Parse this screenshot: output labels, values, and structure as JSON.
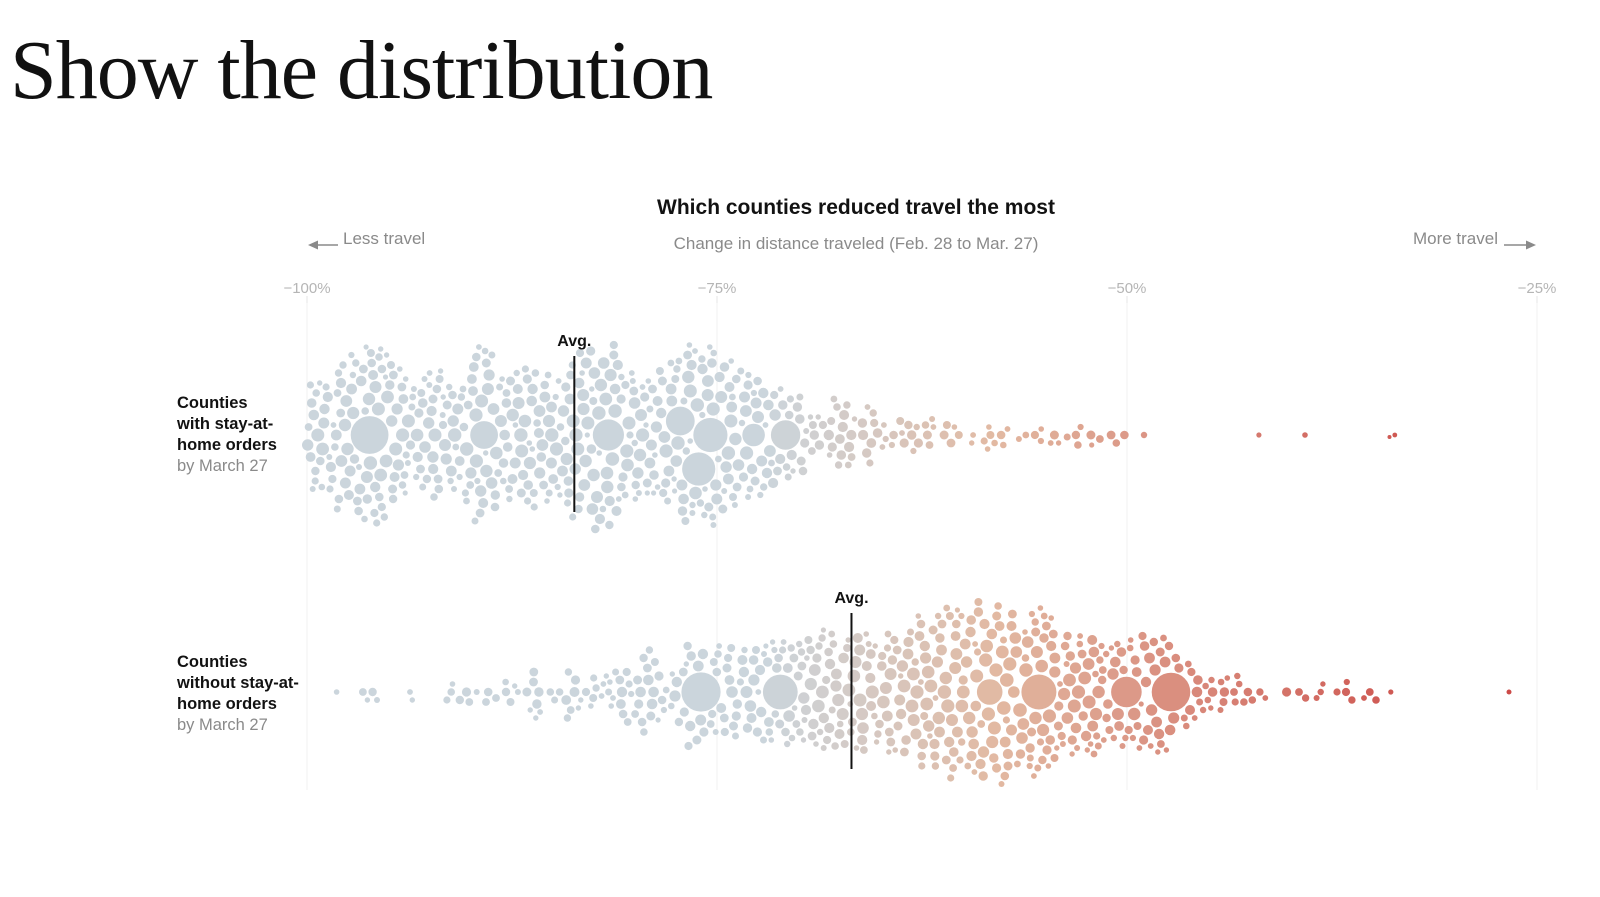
{
  "slide": {
    "title": "Show the distribution"
  },
  "chart_data": {
    "type": "scatter",
    "subtype": "beeswarm",
    "title": "Which counties reduced travel the most",
    "subtitle": "Change in distance traveled (Feb. 28 to Mar. 27)",
    "direction_left": "Less travel",
    "direction_right": "More travel",
    "xlim": [
      -100,
      -25
    ],
    "x_ticks": [
      {
        "value": -100,
        "label": "−100%"
      },
      {
        "value": -75,
        "label": "−75%"
      },
      {
        "value": -50,
        "label": "−50%"
      },
      {
        "value": -25,
        "label": "−25%"
      }
    ],
    "avg_label": "Avg.",
    "colors": {
      "low": "#cbd5dc",
      "mid": "#e2b9a2",
      "high": "#cc4a47",
      "axis": "#e6e6e6"
    },
    "series": [
      {
        "label_lines": [
          "Counties",
          "with stay-at-",
          "home orders"
        ],
        "label_sub": "by March 27",
        "avg": -83.7,
        "x_range": [
          -100,
          -25
        ],
        "density": [
          [
            -100,
            10
          ],
          [
            -97,
            12
          ],
          [
            -92,
            12
          ],
          [
            -88,
            11
          ],
          [
            -86,
            12
          ],
          [
            -84,
            12
          ],
          [
            -80,
            12
          ],
          [
            -76,
            12
          ],
          [
            -73,
            11
          ],
          [
            -70,
            6
          ],
          [
            -67,
            5
          ],
          [
            -64,
            4
          ],
          [
            -61,
            3
          ],
          [
            -58,
            2.6
          ],
          [
            -55,
            2
          ],
          [
            -52,
            1.2
          ],
          [
            -50,
            0.6
          ],
          [
            -47,
            0.25
          ],
          [
            -44,
            0.15
          ],
          [
            -40,
            0.08
          ],
          [
            -36,
            0.05
          ],
          [
            -30,
            0.02
          ],
          [
            -27,
            0.01
          ],
          [
            -25,
            0.15
          ]
        ]
      },
      {
        "label_lines": [
          "Counties",
          "without stay-at-",
          "home orders"
        ],
        "label_sub": "by March 27",
        "avg": -66.8,
        "x_range": [
          -100,
          -25
        ],
        "density": [
          [
            -100,
            0.4
          ],
          [
            -96,
            1.2
          ],
          [
            -92,
            1.4
          ],
          [
            -88,
            2.2
          ],
          [
            -84,
            3.5
          ],
          [
            -80,
            5
          ],
          [
            -76,
            7
          ],
          [
            -73,
            8.5
          ],
          [
            -70,
            10
          ],
          [
            -67,
            11
          ],
          [
            -64,
            11.5
          ],
          [
            -61,
            12
          ],
          [
            -58,
            12
          ],
          [
            -55,
            12
          ],
          [
            -52,
            11
          ],
          [
            -49,
            9
          ],
          [
            -46,
            6
          ],
          [
            -44,
            4
          ],
          [
            -41,
            2.5
          ],
          [
            -38,
            1.2
          ],
          [
            -34,
            0.6
          ],
          [
            -30,
            0.3
          ],
          [
            -27,
            0.15
          ],
          [
            -25,
            0.6
          ]
        ]
      }
    ]
  }
}
